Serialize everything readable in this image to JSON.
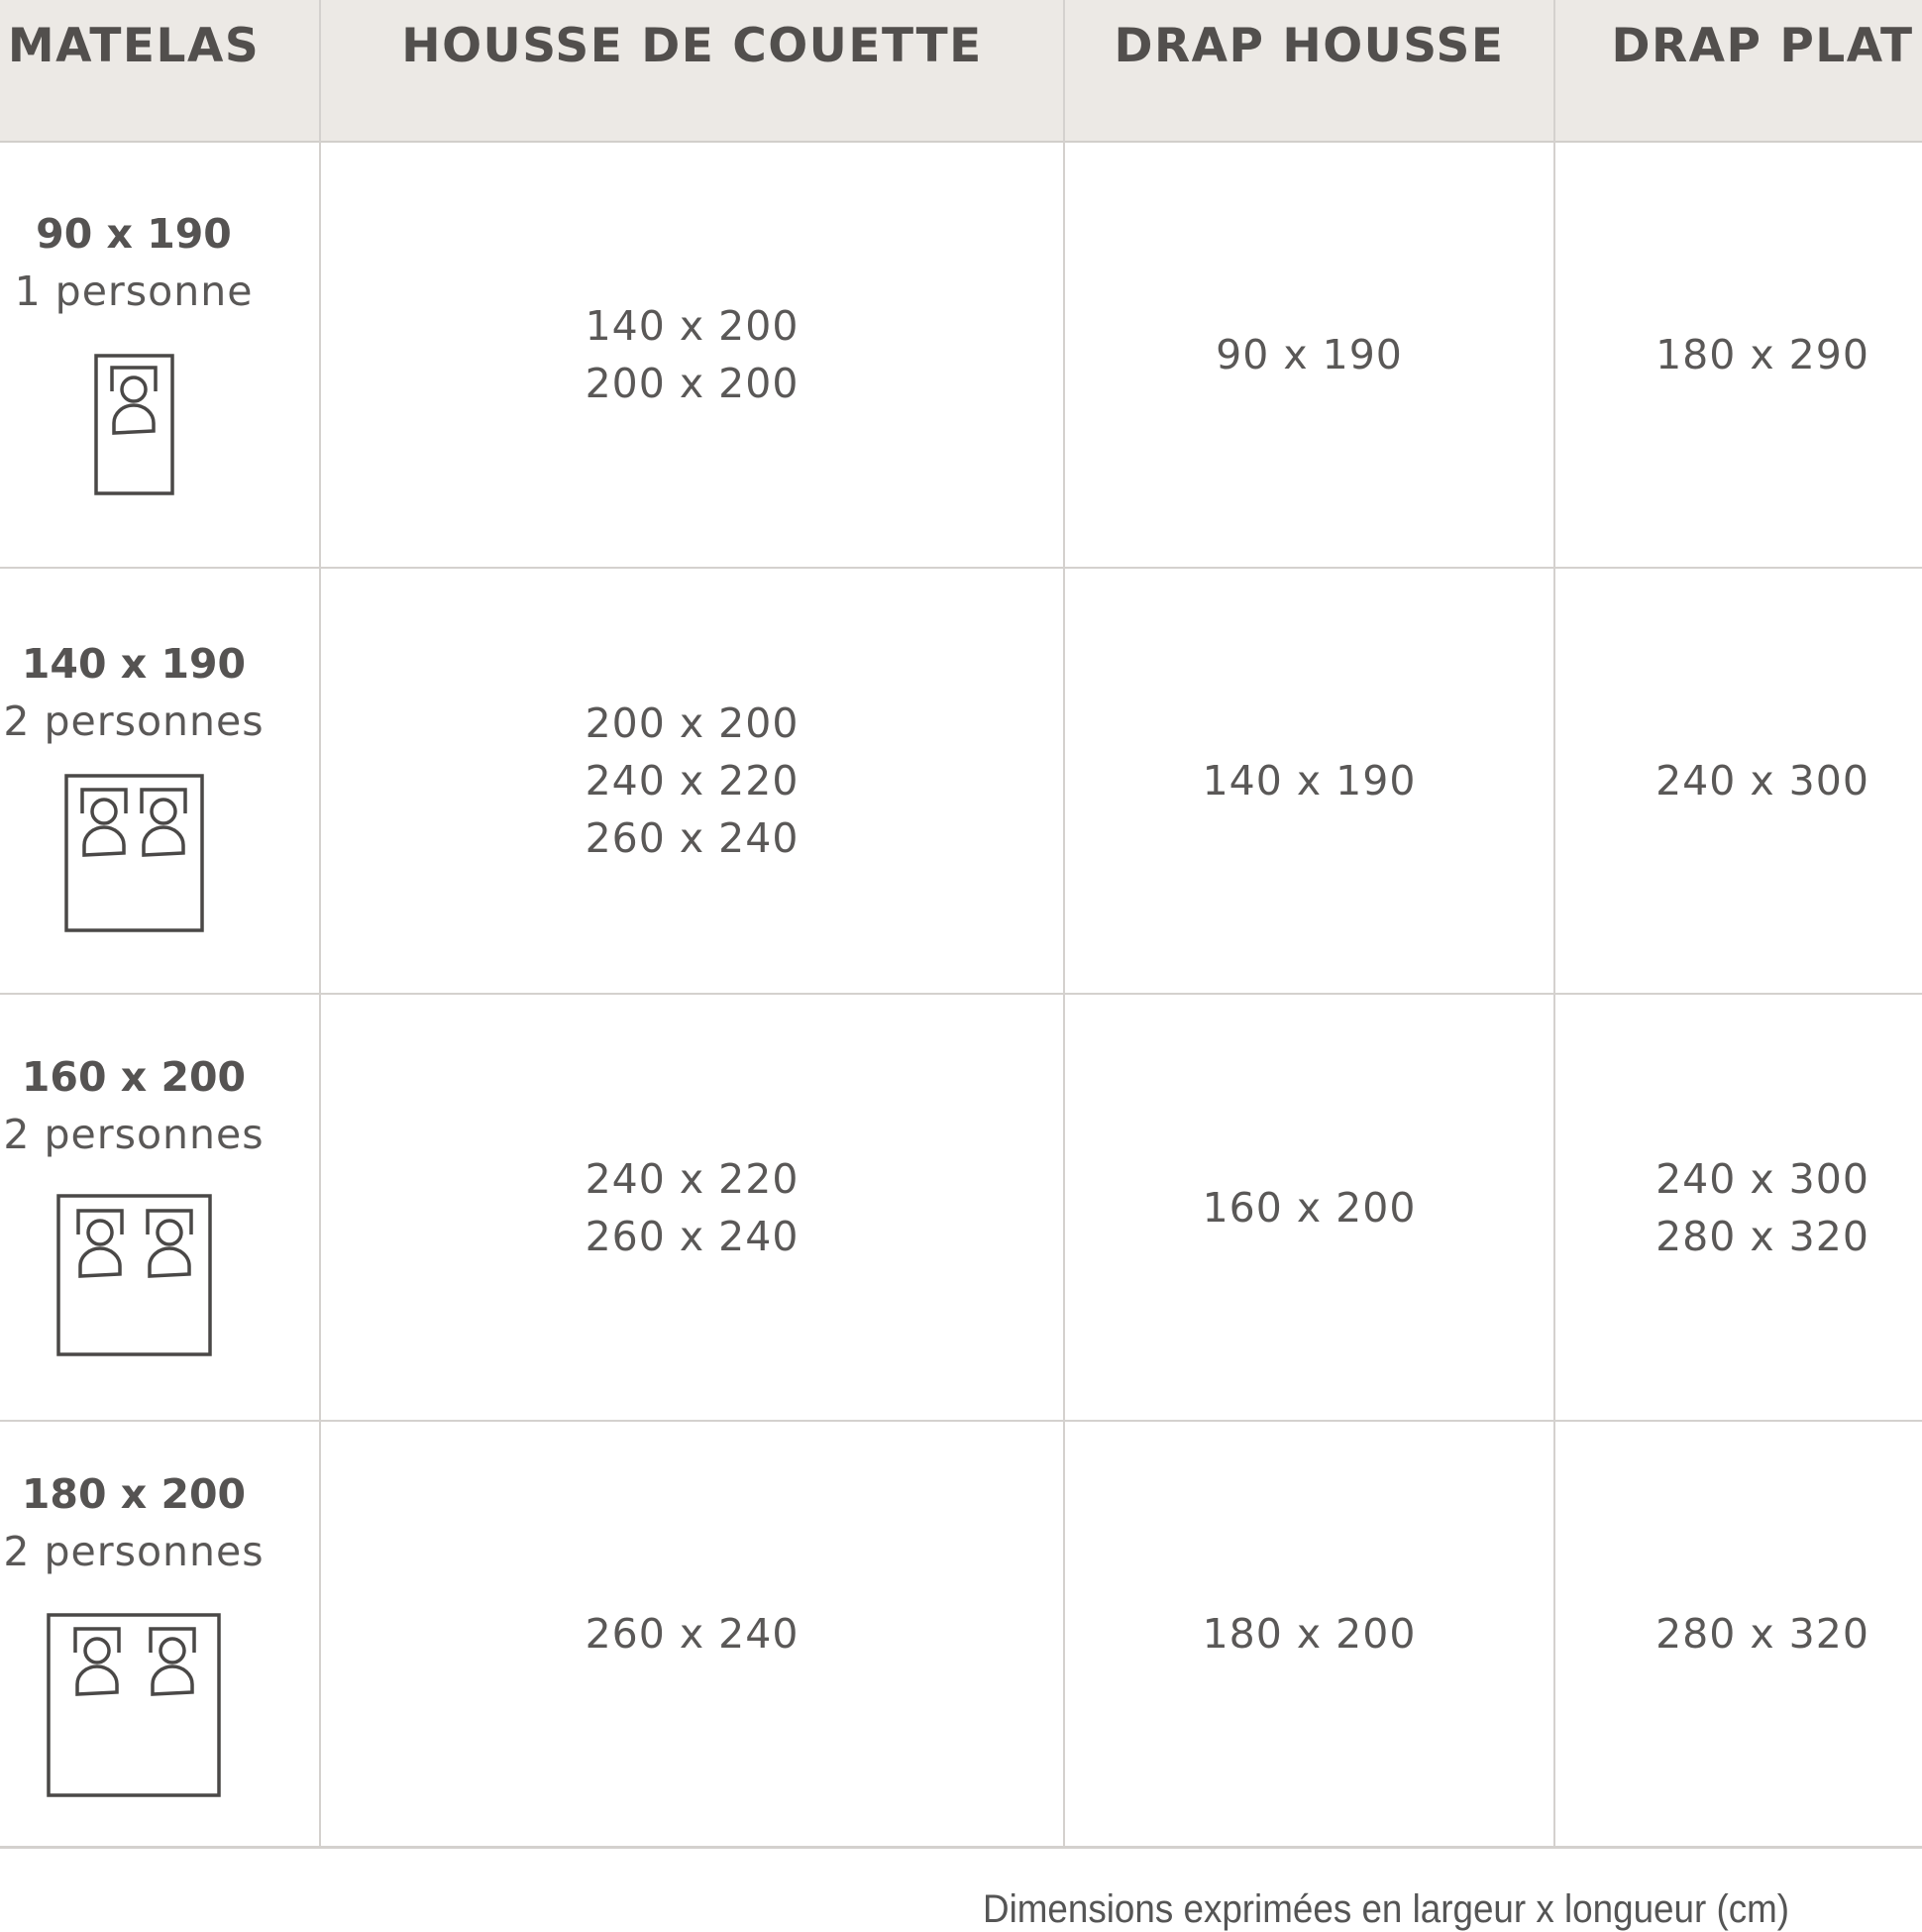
{
  "table": {
    "headers": [
      "MATELAS",
      "HOUSSE DE COUETTE",
      "DRAP HOUSSE",
      "DRAP PLAT"
    ],
    "rows": [
      {
        "mattress_size": "90 x 190",
        "persons": "1 personne",
        "person_count": 1,
        "duvet_cover": [
          "140 x 200",
          "200 x 200"
        ],
        "fitted_sheet": [
          "90 x 190"
        ],
        "flat_sheet": [
          "180 x 290"
        ]
      },
      {
        "mattress_size": "140 x 190",
        "persons": "2 personnes",
        "person_count": 2,
        "duvet_cover": [
          "200 x 200",
          "240 x 220",
          "260 x 240"
        ],
        "fitted_sheet": [
          "140 x 190"
        ],
        "flat_sheet": [
          "240 x 300"
        ]
      },
      {
        "mattress_size": "160 x 200",
        "persons": "2 personnes",
        "person_count": 2,
        "duvet_cover": [
          "240 x 220",
          "260 x 240"
        ],
        "fitted_sheet": [
          "160 x 200"
        ],
        "flat_sheet": [
          "240 x 300",
          "280 x 320"
        ]
      },
      {
        "mattress_size": "180 x 200",
        "persons": "2 personnes",
        "person_count": 2,
        "duvet_cover": [
          "260 x 240"
        ],
        "fitted_sheet": [
          "180 x 200"
        ],
        "flat_sheet": [
          "280 x 320"
        ]
      }
    ]
  },
  "footer": {
    "note": "Dimensions exprimées en largeur x longueur (cm)"
  },
  "colors": {
    "header_bg": "#ece9e5",
    "text": "#555352",
    "grid": "#d4d1ce"
  },
  "icons": {
    "bed": "bed-icon",
    "person": "sleeping-person-icon"
  }
}
